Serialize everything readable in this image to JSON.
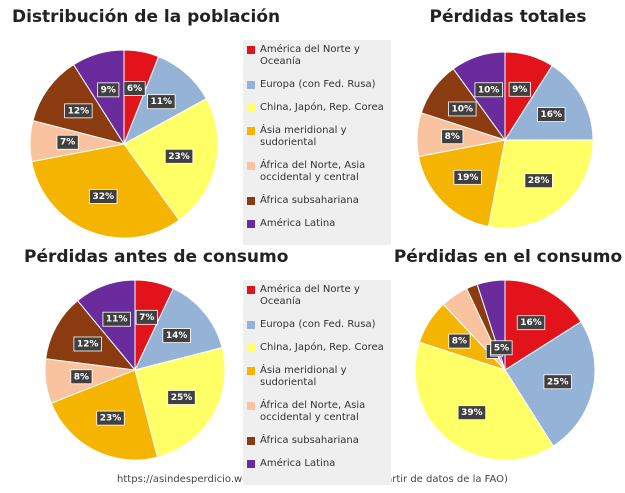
{
  "chart_data": [
    {
      "type": "pie",
      "title": "Distribución de la población",
      "categories": [
        "América del Norte y Oceanía",
        "Europa (con Fed. Rusa)",
        "China, Japón, Rep. Corea",
        "Ásia meridional y sudoriental",
        "África del Norte, Asia occidental y central",
        "África subsahariana",
        "América Latina"
      ],
      "values": [
        6,
        11,
        23,
        32,
        7,
        12,
        9
      ],
      "value_labels": [
        "6%",
        "11%",
        "23%",
        "32%",
        "7%",
        "12%",
        "9%"
      ],
      "colors": [
        "#e3131b",
        "#95b3d7",
        "#ffff66",
        "#f5b400",
        "#f9c3a0",
        "#8a3b0f",
        "#6a2c9c"
      ]
    },
    {
      "type": "pie",
      "title": "Pérdidas totales",
      "values": [
        9,
        16,
        28,
        19,
        8,
        10,
        10
      ],
      "value_labels": [
        "9%",
        "16%",
        "28%",
        "19%",
        "8%",
        "10%",
        "10%"
      ],
      "colors": [
        "#e3131b",
        "#95b3d7",
        "#ffff66",
        "#f5b400",
        "#f9c3a0",
        "#8a3b0f",
        "#6a2c9c"
      ]
    },
    {
      "type": "pie",
      "title": "Pérdidas antes de consumo",
      "categories": [
        "América del Norte y Oceanía",
        "Europa (con Fed. Rusa)",
        "China, Japón, Rep. Corea",
        "Ásia meridional y sudoriental",
        "África del Norte, Asia occidental y central",
        "África subsahariana",
        "América Latina"
      ],
      "values": [
        7,
        14,
        25,
        23,
        8,
        12,
        11
      ],
      "value_labels": [
        "7%",
        "14%",
        "25%",
        "23%",
        "8%",
        "12%",
        "11%"
      ],
      "colors": [
        "#e3131b",
        "#95b3d7",
        "#ffff66",
        "#f5b400",
        "#f9c3a0",
        "#8a3b0f",
        "#6a2c9c"
      ]
    },
    {
      "type": "pie",
      "title": "Pérdidas en el consumo",
      "values": [
        16,
        25,
        39,
        8,
        5,
        2,
        5
      ],
      "value_labels": [
        "16%",
        "25%",
        "39%",
        "8%",
        "5",
        "2",
        "5%"
      ],
      "colors": [
        "#e3131b",
        "#95b3d7",
        "#ffff66",
        "#f5b400",
        "#f9c3a0",
        "#8a3b0f",
        "#6a2c9c"
      ]
    }
  ],
  "footer": "https://asindesperdicio.wordpress.com (elaborado a partir de datos de la FAO)"
}
